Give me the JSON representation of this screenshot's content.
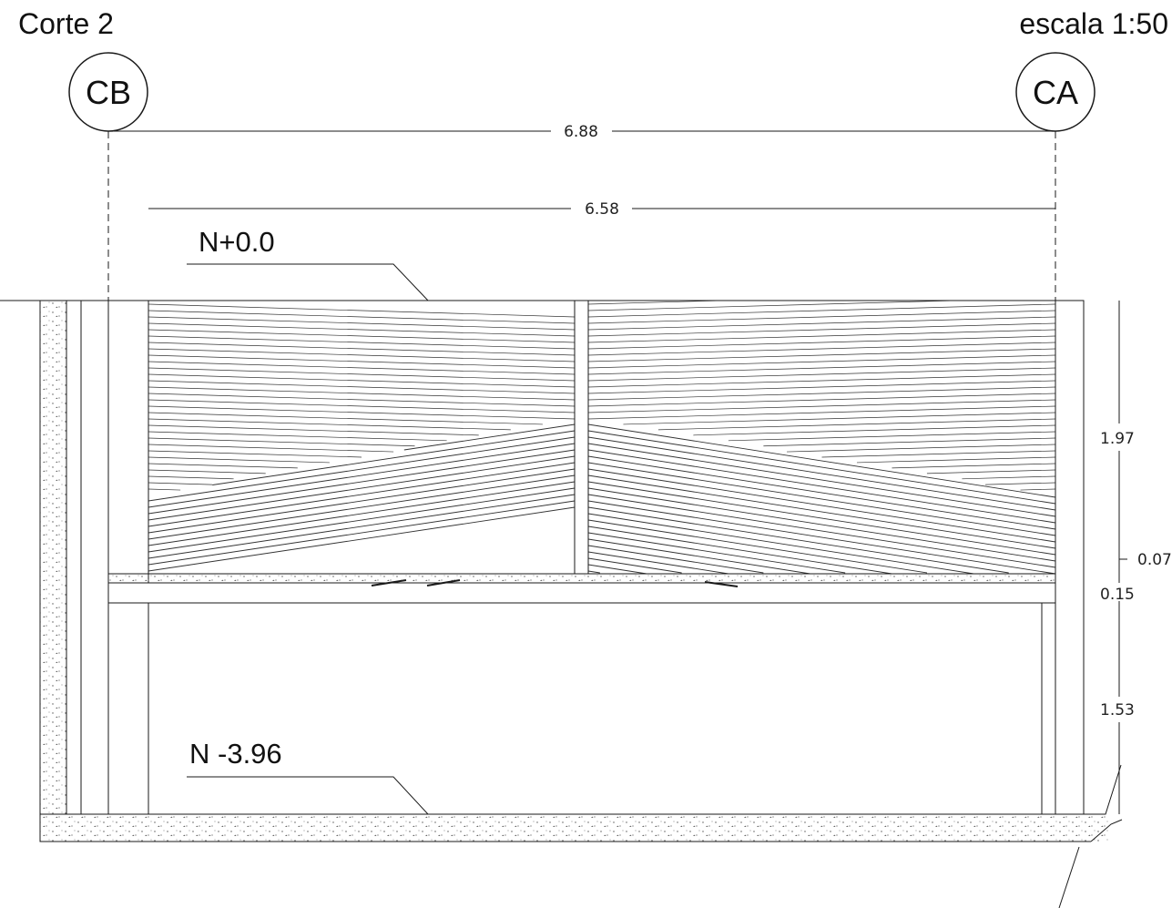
{
  "drawing": {
    "title": "Corte 2",
    "scale": "escala 1:50"
  },
  "axes": [
    {
      "label": "CB"
    },
    {
      "label": "CA"
    }
  ],
  "levels": {
    "top": "N+0.0",
    "bottom": "N -3.96"
  },
  "dimensions": {
    "axis_to_axis": "6.88",
    "inner_width": "6.58",
    "upper_height": "1.97",
    "offset": "0.07",
    "slab": "0.15",
    "lower_height": "1.53"
  },
  "colors": {
    "line": "#1a1a1a",
    "hatch": "#333333",
    "concrete_dots": "#555555"
  }
}
